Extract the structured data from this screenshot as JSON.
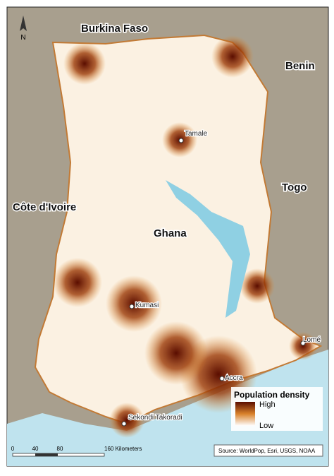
{
  "north_arrow": "N",
  "countries": [
    "Burkina Faso",
    "Benin",
    "Togo",
    "Côte d'Ivoire",
    "Ghana"
  ],
  "cities": [
    "Tamale",
    "Kumasi",
    "Accra",
    "Lomé",
    "Sekondi Takoradi"
  ],
  "legend": {
    "title": "Population density",
    "high": "High",
    "low": "Low"
  },
  "scale_bar": {
    "ticks": [
      "0",
      "40",
      "80",
      "160 Kilometers"
    ]
  },
  "source": "Source: WorldPop, Esri, USGS, NOAA"
}
